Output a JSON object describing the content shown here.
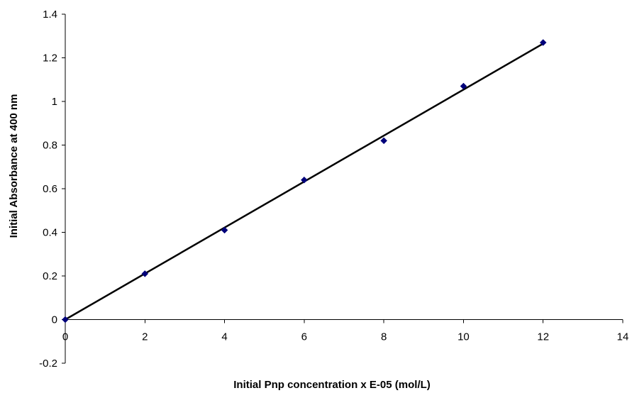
{
  "chart_data": {
    "type": "scatter",
    "title": "",
    "xlabel": "Initial Pnp concentration x E-05 (mol/L)",
    "ylabel": "Initial Absorbance at 400 nm",
    "xlim": [
      0,
      14
    ],
    "ylim": [
      -0.2,
      1.4
    ],
    "x_ticks": [
      "0",
      "2",
      "4",
      "6",
      "8",
      "10",
      "12",
      "14"
    ],
    "y_ticks": [
      "-0.2",
      "0",
      "0.2",
      "0.4",
      "0.6",
      "0.8",
      "1",
      "1.2",
      "1.4"
    ],
    "grid": false,
    "legend": "none",
    "series": [
      {
        "marker": "diamond",
        "color": "#00007a",
        "x": [
          0,
          2,
          4,
          6,
          8,
          10,
          12
        ],
        "y": [
          0,
          0.21,
          0.41,
          0.64,
          0.82,
          1.07,
          1.27
        ]
      }
    ],
    "trendline": {
      "type": "linear",
      "color": "#000000",
      "x": [
        0,
        12
      ],
      "y": [
        0,
        1.265
      ]
    }
  }
}
